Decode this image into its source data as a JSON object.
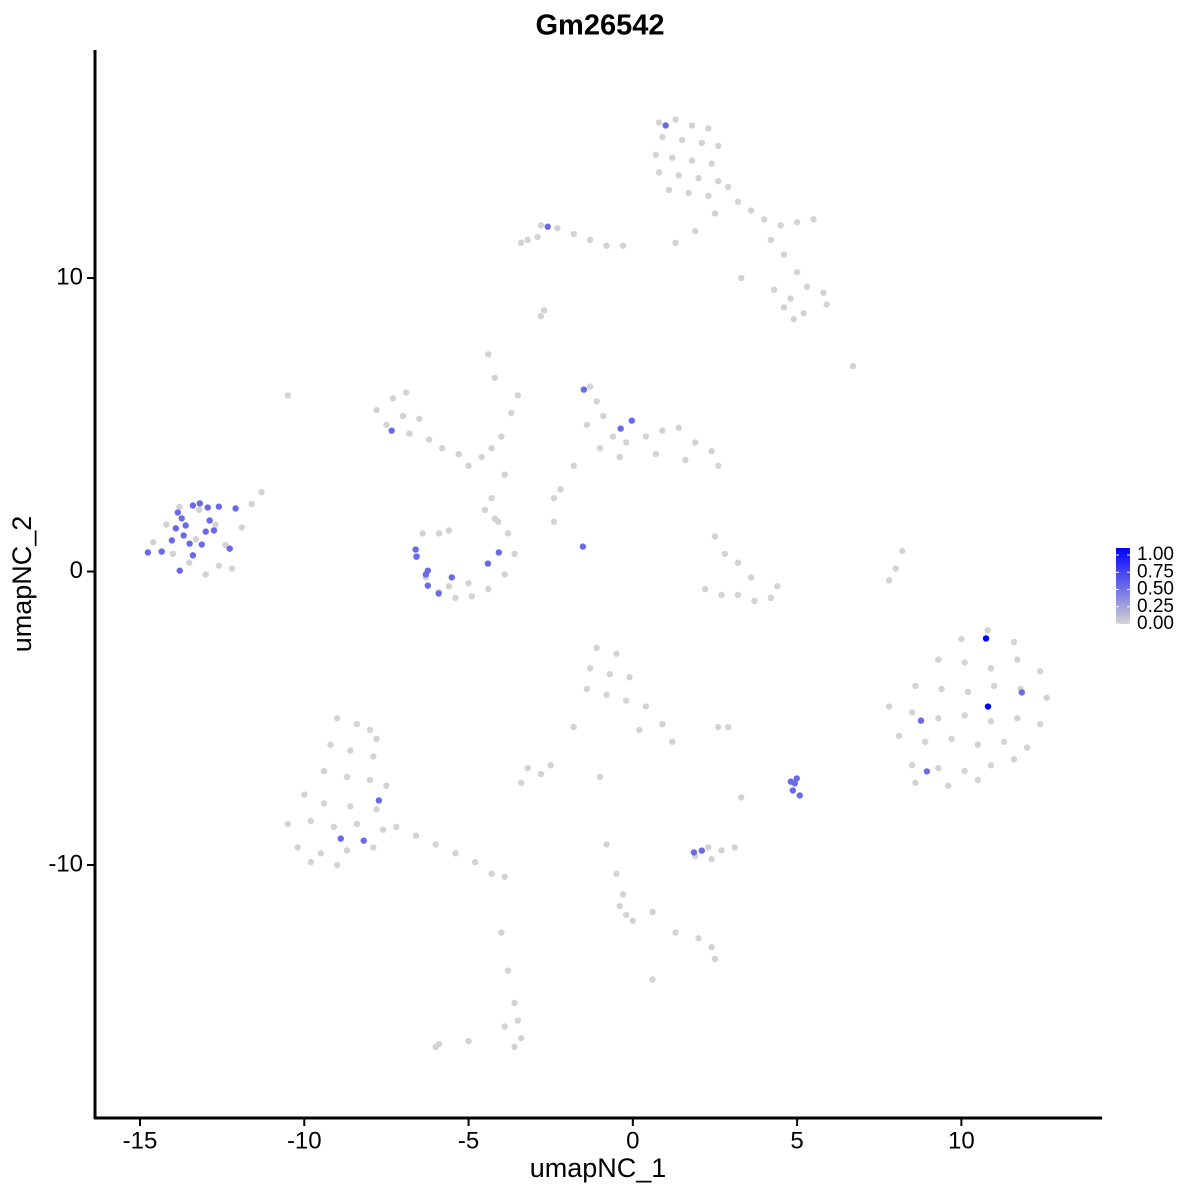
{
  "chart_data": {
    "type": "scatter",
    "title": "Gm26542",
    "xlabel": "umapNC_1",
    "ylabel": "umapNC_2",
    "xlim": [
      -16.37,
      14.28
    ],
    "ylim": [
      -18.62,
      17.77
    ],
    "xticks": [
      -15,
      -10,
      -5,
      0,
      5,
      10
    ],
    "yticks": [
      -10,
      0,
      10
    ],
    "x": [
      0.8,
      1.3,
      1.8,
      2.3,
      0.9,
      1.5,
      2.1,
      2.6,
      0.7,
      1.2,
      1.8,
      2.4,
      0.8,
      1.4,
      2.0,
      2.6,
      1.1,
      1.7,
      2.3,
      2.9,
      3.2,
      3.6,
      4.0,
      4.5,
      5.0,
      5.5,
      4.2,
      4.6,
      5.0,
      2.5,
      1.9,
      1.3,
      3.3,
      4.3,
      4.8,
      5.3,
      5.8,
      4.6,
      5.2,
      5.9,
      4.9,
      -3.2,
      -2.8,
      -2.3,
      -1.8,
      -1.3,
      -0.8,
      -0.3,
      -2.9,
      -3.4,
      -2.8,
      -2.7,
      6.7,
      -10.5,
      -7.8,
      -7.3,
      -6.9,
      -7.5,
      -7.0,
      -6.5,
      -6.8,
      -6.2,
      -5.8,
      -5.3,
      -5.0,
      -4.6,
      -4.3,
      -4.0,
      -3.7,
      -3.5,
      -4.2,
      -4.4,
      -3.9,
      -4.3,
      -4.2,
      -1.3,
      -1.1,
      -0.9,
      -1.4,
      -0.6,
      -1.0,
      -0.2,
      0.4,
      0.9,
      1.4,
      1.9,
      2.4,
      2.6,
      1.6,
      0.7,
      -0.4,
      -1.8,
      -2.2,
      -2.4,
      -2.4,
      -6.4,
      -6.6,
      -6.3,
      -5.9,
      -5.4,
      -4.9,
      -4.4,
      -3.9,
      -3.6,
      -3.8,
      -4.1,
      -4.5,
      -5.6,
      -5.9,
      -5.0,
      -5.6,
      2.5,
      2.8,
      3.2,
      3.6,
      3.2,
      3.7,
      4.2,
      4.4,
      2.2,
      2.7,
      8.2,
      8.0,
      7.8,
      -14.6,
      -14.2,
      -13.8,
      -13.2,
      -12.7,
      -12.4,
      -12.6,
      -13.0,
      -13.5,
      -14.0,
      -13.3,
      -12.2,
      -11.9,
      -11.6,
      -11.3,
      10.0,
      10.8,
      11.6,
      9.3,
      10.1,
      10.9,
      11.7,
      12.4,
      8.6,
      9.4,
      10.2,
      11.0,
      11.8,
      12.6,
      7.8,
      8.5,
      9.3,
      10.1,
      10.9,
      11.7,
      12.4,
      8.1,
      8.9,
      9.7,
      10.5,
      11.3,
      12.0,
      8.5,
      9.3,
      10.1,
      10.9,
      11.6,
      8.6,
      9.6,
      10.5,
      -9.0,
      -8.4,
      -8.0,
      -9.2,
      -8.6,
      -7.9,
      -9.4,
      -8.7,
      -8.0,
      -7.5,
      -10.0,
      -9.4,
      -8.6,
      -7.8,
      -10.5,
      -9.8,
      -9.1,
      -8.4,
      -7.6,
      -10.2,
      -9.5,
      -8.7,
      -7.9,
      -9.8,
      -9.0,
      -7.2,
      -6.6,
      -6.0,
      -5.4,
      -4.8,
      -4.3,
      -3.9,
      -7.8,
      -1.1,
      -0.5,
      -1.3,
      -0.7,
      -0.1,
      -1.4,
      -0.8,
      -0.2,
      0.4,
      0.9,
      1.2,
      0.2,
      -1.8,
      -3.2,
      -2.8,
      -3.4,
      -2.5,
      -1.0,
      3.3,
      2.6,
      2.9,
      1.9,
      2.3,
      2.7,
      3.1,
      2.4,
      -0.8,
      -0.5,
      -0.3,
      -0.2,
      0.0,
      -0.4,
      0.6,
      1.3,
      2.0,
      2.4,
      2.5,
      -3.8,
      -3.6,
      -3.5,
      -3.4,
      -3.6,
      -3.9,
      -6.0,
      -5.9,
      0.6,
      -4.0,
      -5.0,
      -14.76,
      -14.34,
      -14.03,
      -13.91,
      -13.73,
      -13.61,
      -13.85,
      -13.39,
      -13.18,
      -12.94,
      -12.6,
      -12.09,
      -13.79,
      -13.39,
      -13.12,
      -13.0,
      -12.75,
      -13.49,
      -12.27,
      -12.88,
      -13.67,
      1.0,
      -2.59,
      -7.34,
      -1.49,
      -0.37,
      -0.03,
      -1.52,
      -6.61,
      -6.58,
      -6.24,
      -6.3,
      -6.24,
      -5.91,
      -5.51,
      -4.41,
      -4.08,
      -7.73,
      -8.89,
      -8.19,
      4.81,
      4.99,
      4.87,
      5.08,
      4.93,
      1.86,
      2.1,
      8.77,
      8.95,
      11.84,
      10.75,
      10.81
    ],
    "y": [
      15.3,
      15.4,
      15.2,
      15.1,
      14.8,
      14.7,
      14.6,
      14.5,
      14.2,
      14.1,
      14.0,
      13.9,
      13.6,
      13.5,
      13.4,
      13.3,
      13.0,
      12.9,
      12.8,
      13.1,
      12.6,
      12.3,
      12.0,
      11.8,
      11.9,
      12.0,
      11.3,
      10.8,
      10.2,
      12.2,
      11.6,
      11.2,
      10.0,
      9.6,
      9.3,
      9.7,
      9.5,
      9.0,
      8.8,
      9.1,
      8.6,
      11.3,
      11.8,
      11.7,
      11.5,
      11.3,
      11.1,
      11.1,
      11.4,
      11.2,
      8.7,
      8.9,
      7.0,
      6.0,
      5.5,
      5.9,
      6.1,
      5.0,
      5.3,
      5.2,
      4.7,
      4.5,
      4.2,
      4.0,
      3.6,
      3.9,
      4.2,
      4.6,
      5.4,
      6.0,
      6.6,
      7.4,
      3.3,
      2.5,
      1.8,
      6.3,
      5.8,
      5.3,
      5.0,
      4.6,
      4.2,
      4.4,
      4.6,
      4.8,
      4.9,
      4.4,
      4.1,
      3.6,
      3.8,
      4.0,
      3.9,
      3.6,
      2.8,
      2.5,
      1.7,
      1.3,
      0.5,
      -0.2,
      -0.7,
      -0.9,
      -0.85,
      -0.6,
      -0.1,
      0.6,
      1.3,
      1.7,
      2.1,
      1.4,
      1.3,
      -0.4,
      -0.5,
      1.2,
      0.6,
      0.3,
      -0.2,
      -0.8,
      -1.0,
      -0.9,
      -0.5,
      -0.6,
      -0.8,
      0.7,
      0.1,
      -0.3,
      1.0,
      1.6,
      2.2,
      2.1,
      1.6,
      0.9,
      0.2,
      -0.1,
      0.3,
      0.6,
      1.1,
      0.1,
      1.5,
      2.3,
      2.7,
      -2.3,
      -2.0,
      -2.4,
      -3.0,
      -3.1,
      -3.3,
      -3.0,
      -3.4,
      -3.9,
      -4.0,
      -4.1,
      -3.9,
      -4.0,
      -4.3,
      -4.6,
      -4.8,
      -5.0,
      -4.9,
      -5.1,
      -5.0,
      -5.2,
      -5.6,
      -5.8,
      -5.7,
      -5.9,
      -5.8,
      -6.0,
      -6.6,
      -6.7,
      -6.8,
      -6.6,
      -6.4,
      -7.2,
      -7.3,
      -7.1,
      -5.0,
      -5.2,
      -5.4,
      -5.9,
      -6.1,
      -6.3,
      -6.8,
      -7.0,
      -7.1,
      -7.3,
      -7.6,
      -7.9,
      -8.0,
      -8.1,
      -8.6,
      -8.5,
      -8.7,
      -8.6,
      -8.8,
      -9.4,
      -9.6,
      -9.5,
      -9.4,
      -9.9,
      -10.0,
      -8.7,
      -9.0,
      -9.3,
      -9.6,
      -9.9,
      -10.3,
      -10.4,
      -5.7,
      -2.6,
      -2.8,
      -3.3,
      -3.5,
      -3.6,
      -4.0,
      -4.2,
      -4.4,
      -4.6,
      -5.2,
      -5.8,
      -5.4,
      -5.3,
      -6.7,
      -6.9,
      -7.2,
      -6.6,
      -7.0,
      -7.7,
      -5.3,
      -5.3,
      -9.7,
      -9.4,
      -9.5,
      -9.4,
      -9.8,
      -9.3,
      -10.3,
      -11.0,
      -11.7,
      -11.9,
      -11.4,
      -11.6,
      -12.3,
      -12.5,
      -12.8,
      -13.2,
      -13.6,
      -14.7,
      -15.3,
      -15.9,
      -16.2,
      -15.5,
      -16.2,
      -16.1,
      -13.9,
      -12.3,
      -16.0,
      0.65,
      0.68,
      1.06,
      1.47,
      1.81,
      1.57,
      2.01,
      2.25,
      2.32,
      2.18,
      2.21,
      2.15,
      0.03,
      0.55,
      0.92,
      1.36,
      1.4,
      0.95,
      0.78,
      1.74,
      1.23,
      15.2,
      11.75,
      4.8,
      6.2,
      4.87,
      5.14,
      0.85,
      0.75,
      0.51,
      0.03,
      -0.1,
      -0.48,
      -0.75,
      -0.2,
      0.27,
      0.65,
      -7.8,
      -9.1,
      -9.17,
      -7.16,
      -7.05,
      -7.46,
      -7.63,
      -7.22,
      -9.57,
      -9.51,
      -5.08,
      -6.81,
      -4.12,
      -2.28,
      -4.6
    ],
    "expression": [
      0,
      0,
      0,
      0,
      0,
      0,
      0,
      0,
      0,
      0,
      0,
      0,
      0,
      0,
      0,
      0,
      0,
      0,
      0,
      0,
      0,
      0,
      0,
      0,
      0,
      0,
      0,
      0,
      0,
      0,
      0,
      0,
      0,
      0,
      0,
      0,
      0,
      0,
      0,
      0,
      0,
      0,
      0,
      0,
      0,
      0,
      0,
      0,
      0,
      0,
      0,
      0,
      0,
      0,
      0,
      0,
      0,
      0,
      0,
      0,
      0,
      0,
      0,
      0,
      0,
      0,
      0,
      0,
      0,
      0,
      0,
      0,
      0,
      0,
      0,
      0,
      0,
      0,
      0,
      0,
      0,
      0,
      0,
      0,
      0,
      0,
      0,
      0,
      0,
      0,
      0,
      0,
      0,
      0,
      0,
      0,
      0,
      0,
      0,
      0,
      0,
      0,
      0,
      0,
      0,
      0,
      0,
      0,
      0,
      0,
      0,
      0,
      0,
      0,
      0,
      0,
      0,
      0,
      0,
      0,
      0,
      0,
      0,
      0,
      0,
      0,
      0,
      0,
      0,
      0,
      0,
      0,
      0,
      0,
      0,
      0,
      0,
      0,
      0,
      0,
      0,
      0,
      0,
      0,
      0,
      0,
      0,
      0,
      0,
      0,
      0,
      0,
      0,
      0,
      0,
      0,
      0,
      0,
      0,
      0,
      0,
      0,
      0,
      0,
      0,
      0,
      0,
      0,
      0,
      0,
      0,
      0,
      0,
      0,
      0,
      0,
      0,
      0,
      0,
      0,
      0,
      0,
      0,
      0,
      0,
      0,
      0,
      0,
      0,
      0,
      0,
      0,
      0,
      0,
      0,
      0,
      0,
      0,
      0,
      0,
      0,
      0,
      0,
      0,
      0,
      0,
      0,
      0,
      0,
      0,
      0,
      0,
      0,
      0,
      0,
      0,
      0,
      0,
      0,
      0,
      0,
      0,
      0,
      0,
      0,
      0,
      0,
      0,
      0,
      0,
      0,
      0,
      0,
      0,
      0,
      0,
      0,
      0,
      0,
      0,
      0,
      0,
      0,
      0,
      0,
      0,
      0,
      0,
      0,
      0,
      0,
      0,
      0,
      0,
      0,
      0.5,
      0.5,
      0.5,
      0.5,
      0.5,
      0.5,
      0.5,
      0.5,
      0.5,
      0.5,
      0.5,
      0.5,
      0.5,
      0.5,
      0.5,
      0.5,
      0.5,
      0.5,
      0.5,
      0.5,
      0.5,
      0.5,
      0.5,
      0.5,
      0.5,
      0.5,
      0.5,
      0.5,
      0.5,
      0.5,
      0.5,
      0.5,
      0.5,
      0.5,
      0.5,
      0.5,
      0.5,
      0.5,
      0.5,
      0.5,
      0.5,
      0.5,
      0.5,
      0.5,
      0.5,
      0.5,
      0.5,
      0.5,
      0.5,
      0.5,
      1,
      1
    ],
    "colorbar": {
      "lim": [
        0,
        1
      ],
      "low": "#d3d3d3",
      "high": "#0000ff",
      "ticks": [
        {
          "value": 0,
          "label": "0.00"
        },
        {
          "value": 0.25,
          "label": "0.25"
        },
        {
          "value": 0.5,
          "label": "0.50"
        },
        {
          "value": 0.75,
          "label": "0.75"
        },
        {
          "value": 1,
          "label": "1.00"
        }
      ]
    }
  }
}
